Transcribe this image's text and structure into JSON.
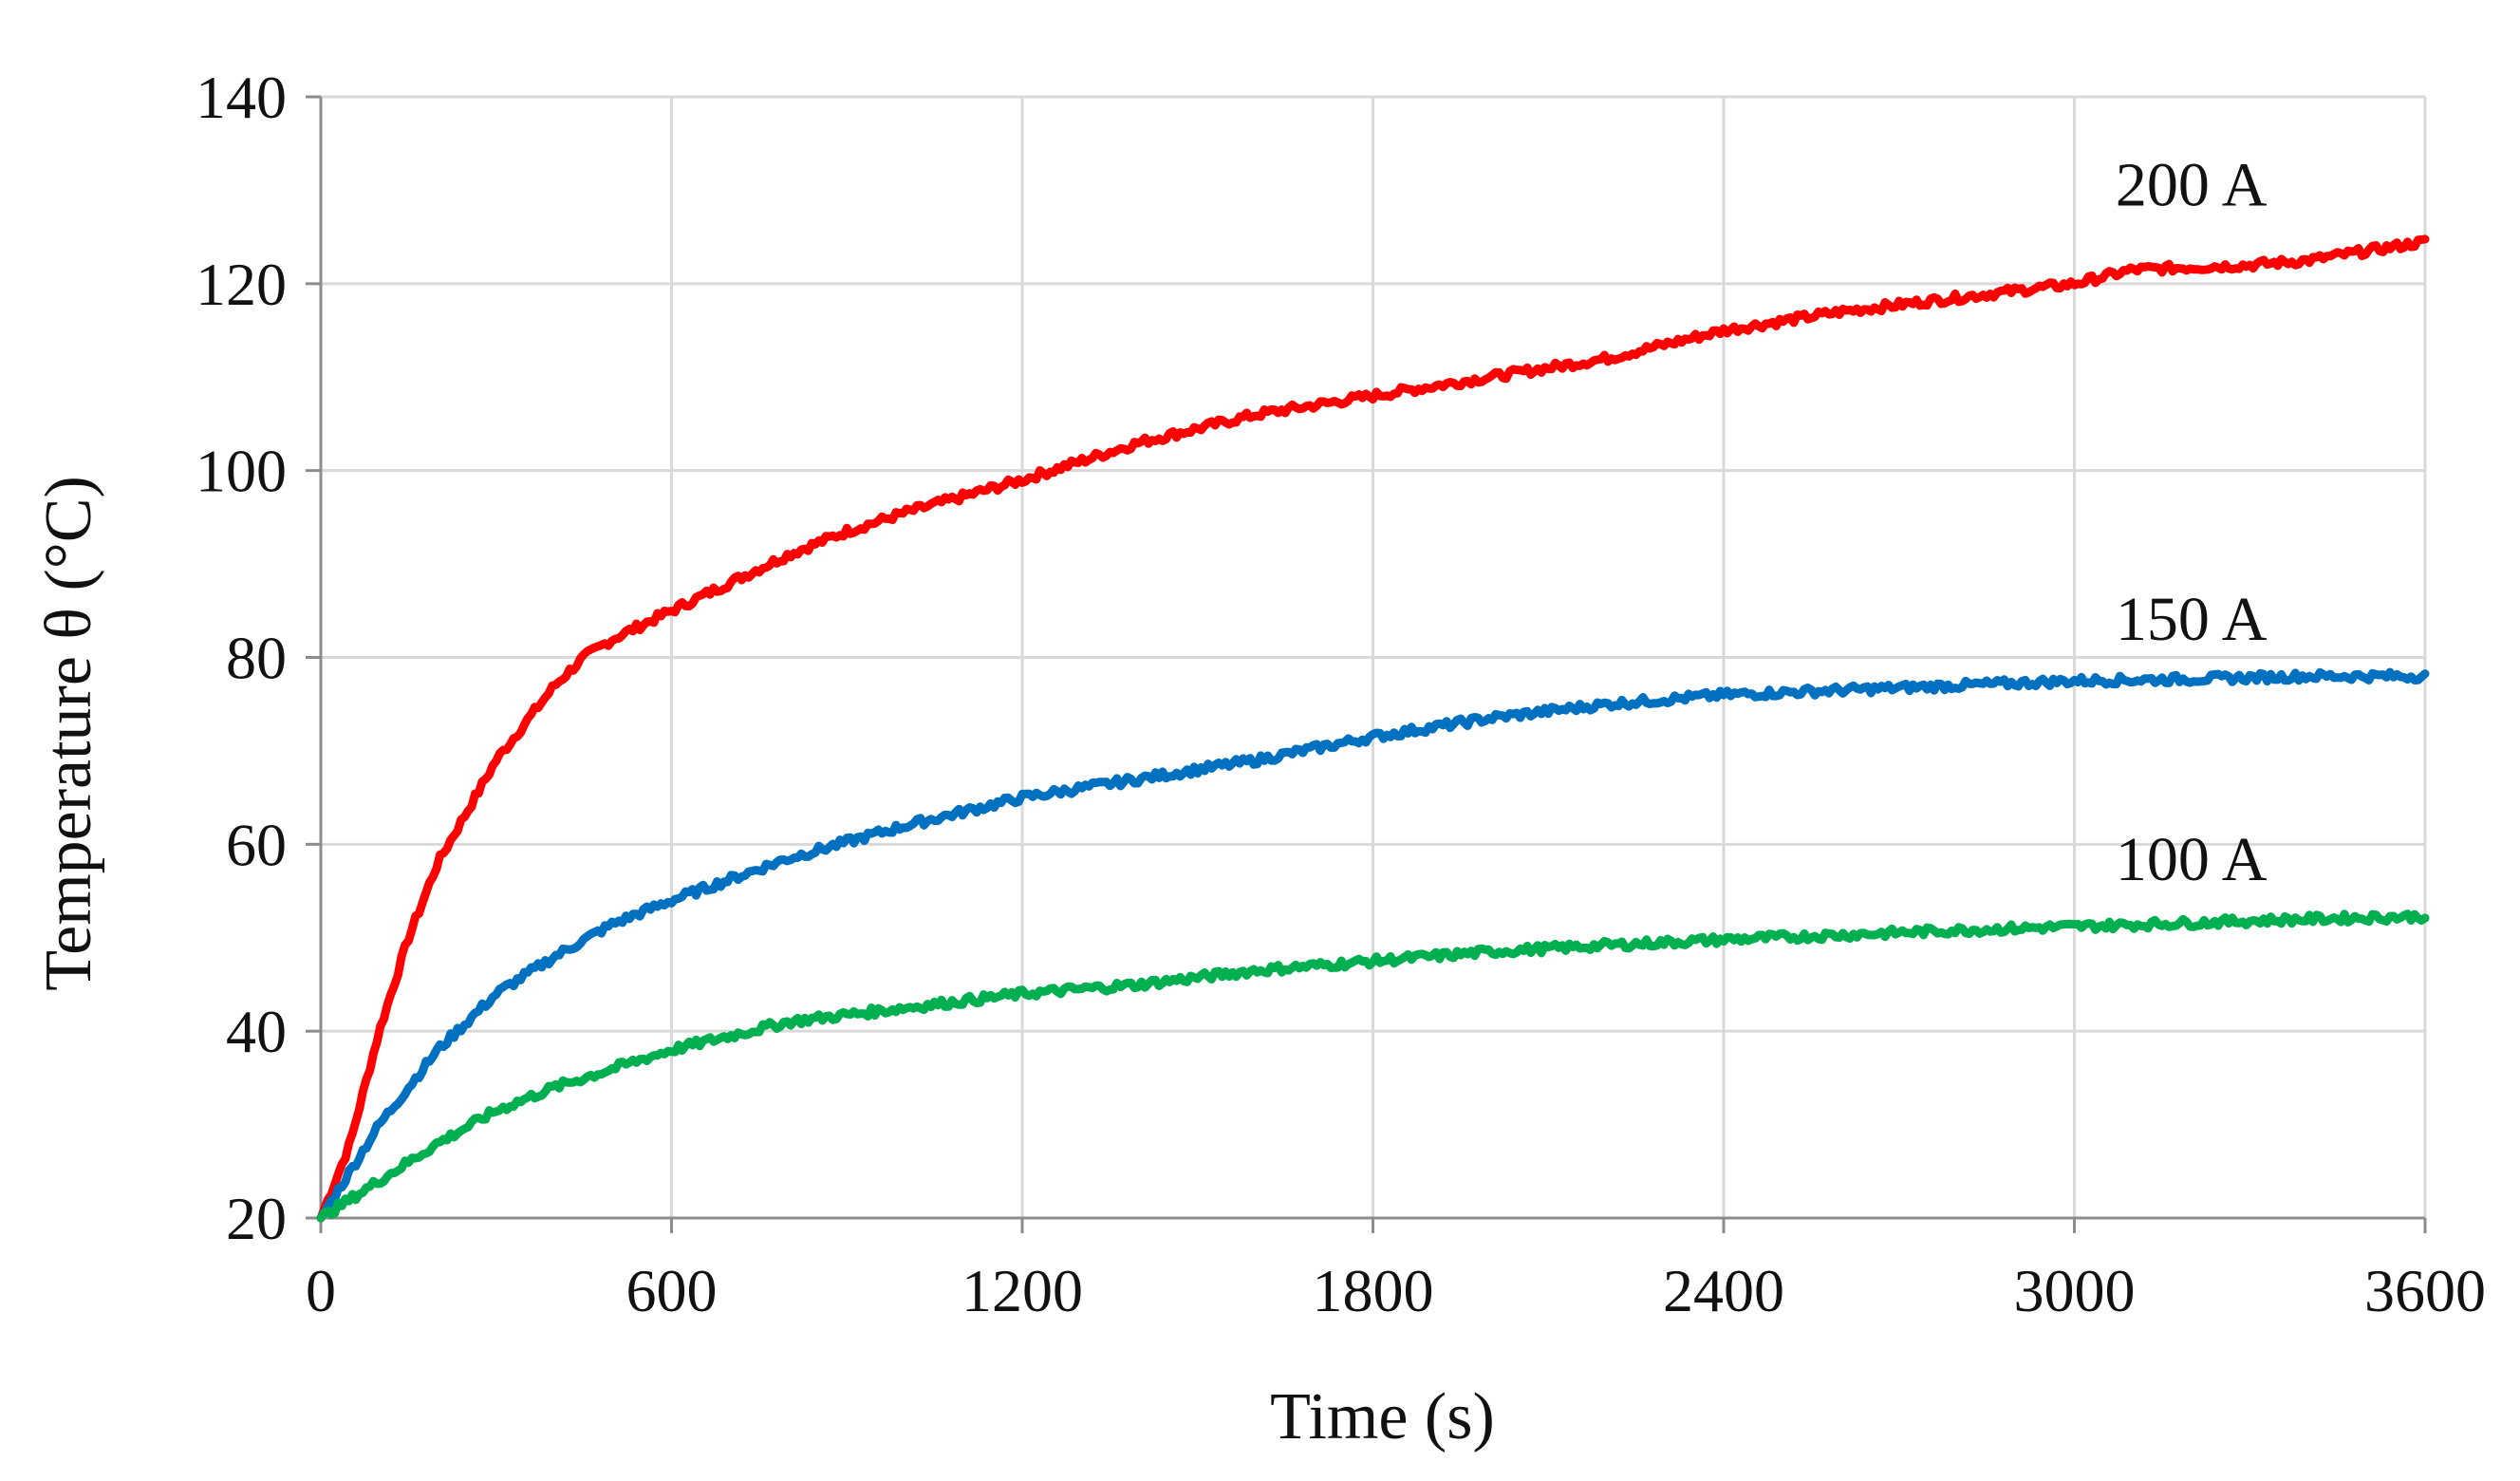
{
  "chart_data": {
    "type": "line",
    "title": "",
    "xlabel": "Time (s)",
    "ylabel": "Temperature θ (°C)",
    "xlim": [
      0,
      3600
    ],
    "ylim": [
      20,
      140
    ],
    "xticks": [
      0,
      600,
      1200,
      1800,
      2400,
      3000,
      3600
    ],
    "yticks": [
      20,
      40,
      60,
      80,
      100,
      120,
      140
    ],
    "xtick_labels": [
      "0",
      "600",
      "1200",
      "1800",
      "2400",
      "3000",
      "3600"
    ],
    "ytick_labels": [
      "20",
      "40",
      "60",
      "80",
      "100",
      "120",
      "140"
    ],
    "grid": true,
    "legend": "none",
    "series": [
      {
        "name": "200 A",
        "color": "#ff0000",
        "x": [
          0,
          50,
          100,
          150,
          200,
          300,
          400,
          450,
          500,
          600,
          700,
          800,
          900,
          1000,
          1200,
          1400,
          1600,
          1800,
          2000,
          2200,
          2400,
          2600,
          2800,
          3000,
          3100,
          3300,
          3400,
          3600
        ],
        "y": [
          20,
          28,
          40,
          50,
          58,
          69,
          77,
          80,
          82,
          85,
          88,
          91,
          93.5,
          95.5,
          99,
          103,
          106,
          108,
          110,
          112,
          115,
          117,
          118.5,
          120,
          121.5,
          122,
          122.5,
          124.5
        ]
      },
      {
        "name": "150 A",
        "color": "#0070c0",
        "x": [
          0,
          50,
          100,
          200,
          300,
          400,
          500,
          600,
          800,
          1000,
          1200,
          1400,
          1600,
          1800,
          2000,
          2200,
          2400,
          2600,
          2800,
          3000,
          3200,
          3400,
          3600
        ],
        "y": [
          20,
          25,
          30,
          38,
          44,
          48,
          51.5,
          54,
          58.5,
          62,
          65,
          67,
          69,
          71.5,
          73.5,
          75,
          76,
          76.5,
          77,
          77.5,
          77.7,
          78,
          78
        ]
      },
      {
        "name": "100 A",
        "color": "#00b050",
        "x": [
          0,
          50,
          100,
          200,
          300,
          400,
          500,
          600,
          800,
          1000,
          1200,
          1400,
          1600,
          1800,
          2000,
          2200,
          2400,
          2600,
          2800,
          3000,
          3200,
          3400,
          3600
        ],
        "y": [
          20,
          22,
          24,
          28,
          31.5,
          34,
          36,
          38,
          41,
          42.5,
          44,
          45,
          46.5,
          47.5,
          48.5,
          49.2,
          49.8,
          50.3,
          50.8,
          51.2,
          51.6,
          52,
          52.3
        ]
      }
    ]
  }
}
